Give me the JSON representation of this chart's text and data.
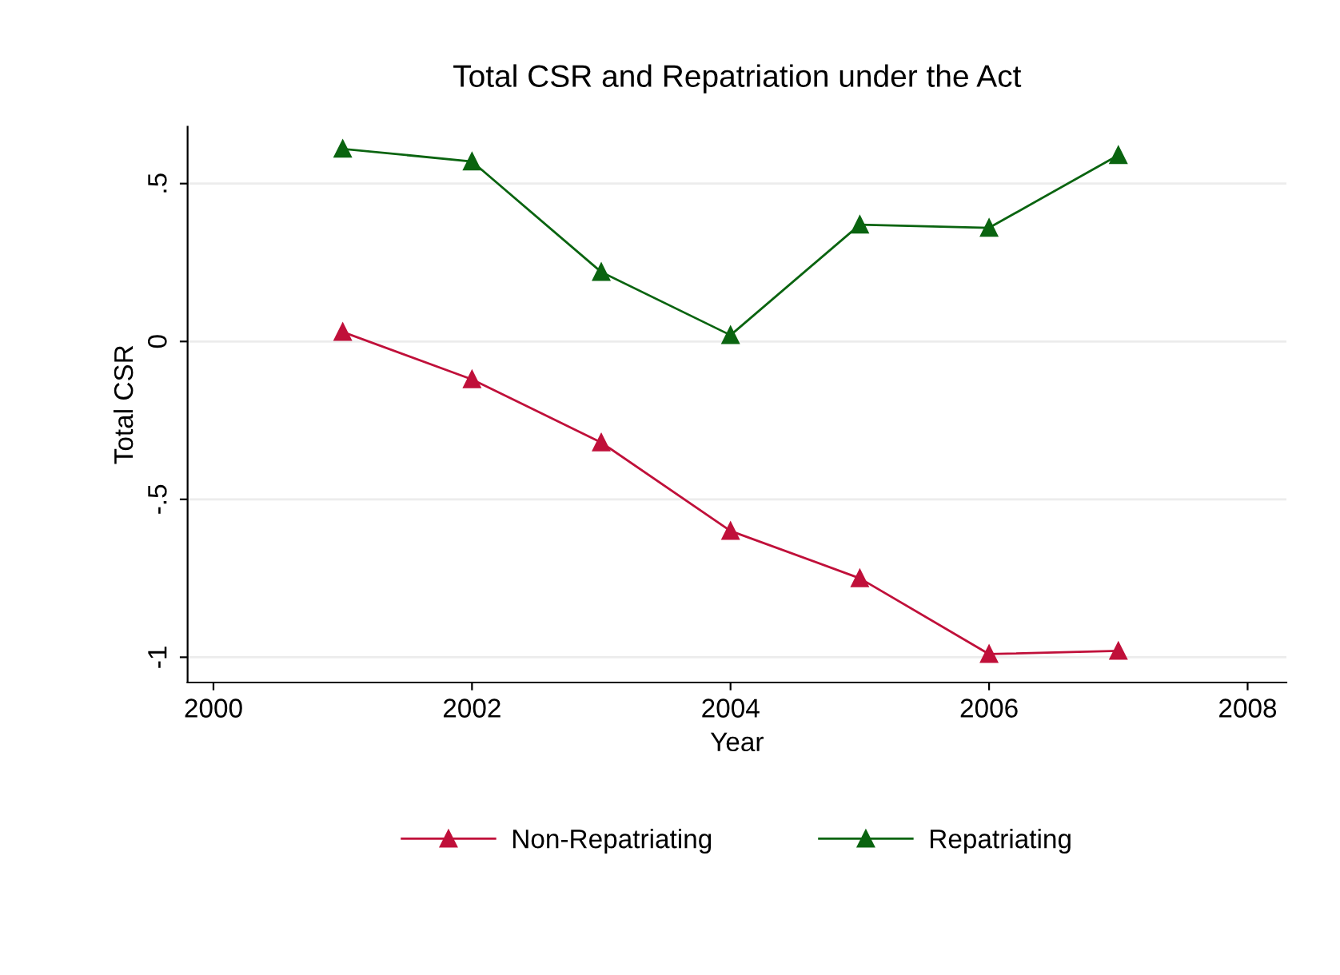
{
  "chart_data": {
    "type": "line",
    "title": "Total CSR and Repatriation under the Act",
    "xlabel": "Year",
    "ylabel": "Total CSR",
    "x": [
      2001,
      2002,
      2003,
      2004,
      2005,
      2006,
      2007
    ],
    "series": [
      {
        "name": "Non-Repatriating",
        "color": "#c0103a",
        "values": [
          0.03,
          -0.12,
          -0.32,
          -0.6,
          -0.75,
          -0.99,
          -0.98
        ]
      },
      {
        "name": "Repatriating",
        "color": "#0a6410",
        "values": [
          0.61,
          0.57,
          0.22,
          0.02,
          0.37,
          0.36,
          0.59
        ]
      }
    ],
    "xlim": [
      1999.8,
      2008.3
    ],
    "xticks": [
      2000,
      2002,
      2004,
      2006,
      2008
    ],
    "ylim": [
      -1.08,
      0.68
    ],
    "yticks": [
      {
        "value": -1,
        "label": "-1"
      },
      {
        "value": -0.5,
        "label": "-.5"
      },
      {
        "value": 0,
        "label": "0"
      },
      {
        "value": 0.5,
        "label": ".5"
      }
    ],
    "grid": "y",
    "legend": "bottom",
    "marker": "triangle",
    "line_style": "solid"
  }
}
